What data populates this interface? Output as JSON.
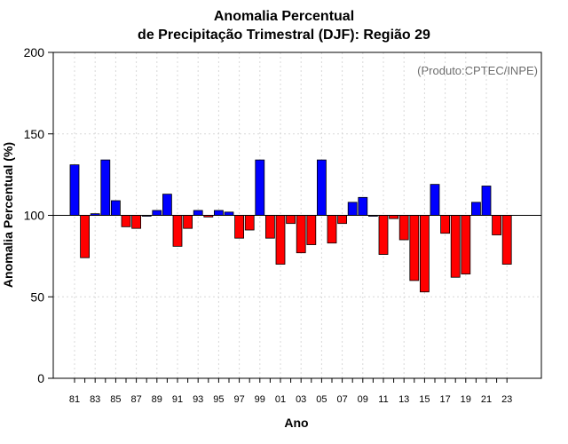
{
  "chart_data": {
    "type": "bar",
    "title_line1": "Anomalia Percentual",
    "title_line2": "de Precipitação Trimestral (DJF): Região 29",
    "credit": "(Produto:CPTEC/INPE)",
    "xlabel": "Ano",
    "ylabel": "Anomalia Percentual (%)",
    "ylim": [
      0,
      200
    ],
    "yticks": [
      0,
      50,
      100,
      150,
      200
    ],
    "baseline": 100,
    "categories": [
      "81",
      "82",
      "83",
      "84",
      "85",
      "86",
      "87",
      "88",
      "89",
      "90",
      "91",
      "92",
      "93",
      "94",
      "95",
      "96",
      "97",
      "98",
      "99",
      "00",
      "01",
      "02",
      "03",
      "04",
      "05",
      "06",
      "07",
      "08",
      "09",
      "10",
      "11",
      "12",
      "13",
      "14",
      "15",
      "16",
      "17",
      "18",
      "19",
      "20",
      "21",
      "22",
      "23"
    ],
    "xtick_labels": [
      "81",
      "83",
      "85",
      "87",
      "89",
      "91",
      "93",
      "95",
      "97",
      "99",
      "01",
      "03",
      "05",
      "07",
      "09",
      "11",
      "13",
      "15",
      "17",
      "19",
      "21",
      "23"
    ],
    "values": [
      131,
      74,
      101,
      134,
      109,
      93,
      92,
      100,
      103,
      113,
      81,
      92,
      103,
      99,
      103,
      102,
      86,
      91,
      134,
      86,
      70,
      95,
      77,
      82,
      134,
      83,
      95,
      108,
      111,
      100,
      76,
      98,
      85,
      60,
      53,
      119,
      89,
      62,
      64,
      108,
      118,
      88,
      70
    ],
    "colors": {
      "above": "#0000ff",
      "below": "#ff0000"
    }
  }
}
